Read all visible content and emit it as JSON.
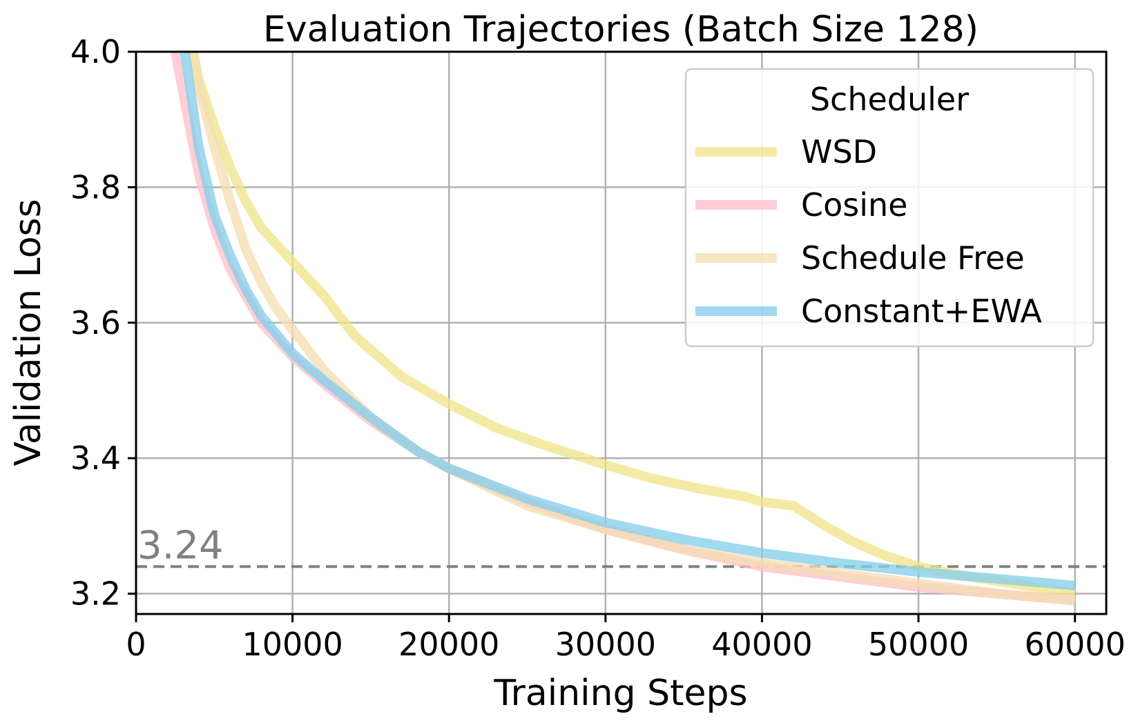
{
  "chart_data": {
    "type": "line",
    "title": "Evaluation Trajectories (Batch Size 128)",
    "xlabel": "Training Steps",
    "ylabel": "Validation Loss",
    "xlim": [
      0,
      62000
    ],
    "ylim": [
      3.17,
      4.0
    ],
    "xticks": [
      0,
      10000,
      20000,
      30000,
      40000,
      50000,
      60000
    ],
    "xtick_labels": [
      "0",
      "10000",
      "20000",
      "30000",
      "40000",
      "50000",
      "60000"
    ],
    "yticks": [
      3.2,
      3.4,
      3.6,
      3.8,
      4.0
    ],
    "ytick_labels": [
      "3.2",
      "3.4",
      "3.6",
      "3.8",
      "4.0"
    ],
    "grid": true,
    "legend": {
      "title": "Scheduler",
      "location": "top-right"
    },
    "reference_line": {
      "value": 3.24,
      "label": "3.24",
      "color": "#808080",
      "style": "dashed"
    },
    "series": [
      {
        "name": "WSD",
        "color": "#f0e68c",
        "x": [
          3500,
          4000,
          5000,
          6000,
          7000,
          8000,
          10000,
          12000,
          14000,
          17000,
          20000,
          23000,
          26000,
          30000,
          33000,
          36000,
          39000,
          40000,
          42000,
          44000,
          46000,
          48000,
          50000,
          53000,
          56000,
          60000
        ],
        "y": [
          4.02,
          3.96,
          3.89,
          3.83,
          3.78,
          3.74,
          3.69,
          3.64,
          3.58,
          3.52,
          3.48,
          3.445,
          3.42,
          3.39,
          3.37,
          3.355,
          3.343,
          3.335,
          3.33,
          3.3,
          3.275,
          3.255,
          3.24,
          3.226,
          3.215,
          3.2
        ]
      },
      {
        "name": "Cosine",
        "color": "#ffc0cb",
        "x": [
          2500,
          3000,
          4000,
          5000,
          6000,
          7000,
          8000,
          10000,
          12000,
          15000,
          18000,
          20000,
          25000,
          30000,
          35000,
          40000,
          45000,
          50000,
          55000,
          60000
        ],
        "y": [
          4.0,
          3.94,
          3.82,
          3.74,
          3.68,
          3.64,
          3.6,
          3.55,
          3.51,
          3.455,
          3.41,
          3.385,
          3.335,
          3.295,
          3.265,
          3.24,
          3.225,
          3.21,
          3.2,
          3.19
        ]
      },
      {
        "name": "Schedule Free",
        "color": "#f5deb3",
        "x": [
          3500,
          4000,
          5000,
          6000,
          7000,
          8000,
          9000,
          10000,
          12000,
          15000,
          18000,
          20000,
          25000,
          30000,
          35000,
          40000,
          45000,
          50000,
          55000,
          60000
        ],
        "y": [
          4.02,
          3.95,
          3.86,
          3.78,
          3.71,
          3.66,
          3.62,
          3.59,
          3.53,
          3.46,
          3.41,
          3.385,
          3.33,
          3.295,
          3.265,
          3.245,
          3.23,
          3.215,
          3.2,
          3.19
        ]
      },
      {
        "name": "Constant+EWA",
        "color": "#87ceeb",
        "x": [
          3000,
          3500,
          4000,
          5000,
          6000,
          7000,
          8000,
          10000,
          12000,
          15000,
          18000,
          20000,
          25000,
          30000,
          35000,
          40000,
          45000,
          50000,
          55000,
          60000
        ],
        "y": [
          4.02,
          3.94,
          3.86,
          3.76,
          3.7,
          3.65,
          3.61,
          3.555,
          3.515,
          3.46,
          3.41,
          3.385,
          3.34,
          3.305,
          3.28,
          3.26,
          3.245,
          3.232,
          3.222,
          3.212
        ]
      }
    ]
  }
}
